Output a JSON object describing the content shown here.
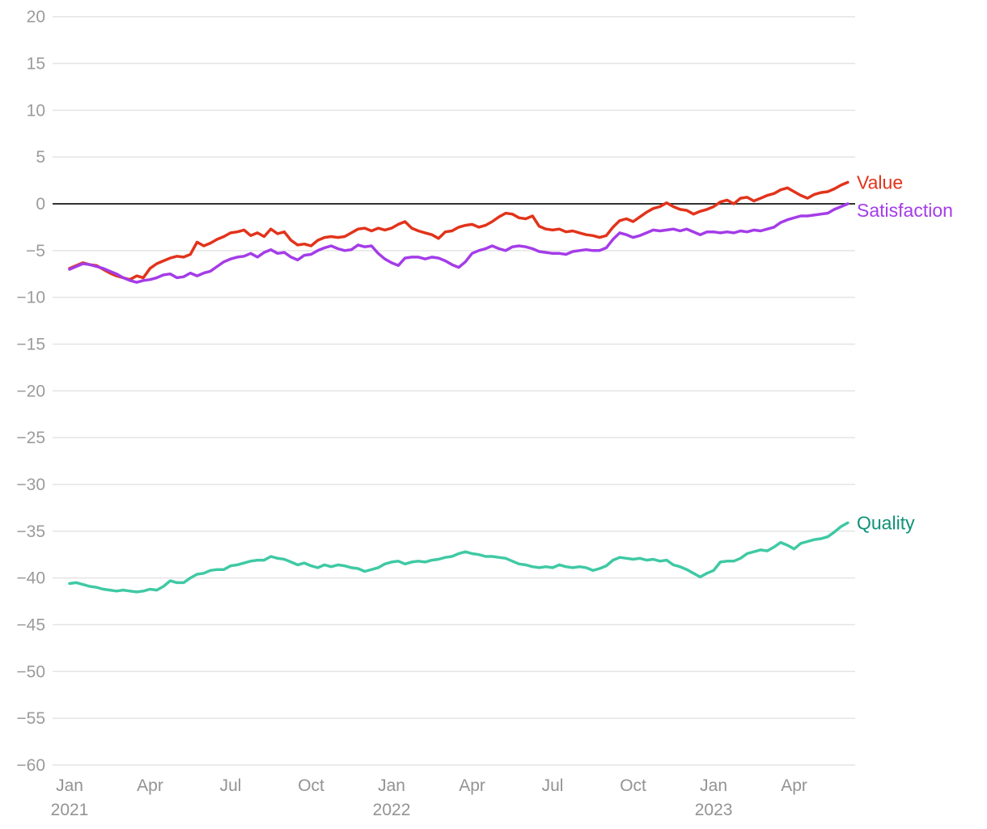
{
  "chart_data": {
    "type": "line",
    "title": "",
    "x_axis": {
      "unit": "months since Jan 2021",
      "t_start": 0,
      "t_step": 0.25,
      "ticks": [
        {
          "t": 0,
          "month": "Jan",
          "year": "2021"
        },
        {
          "t": 3,
          "month": "Apr",
          "year": ""
        },
        {
          "t": 6,
          "month": "Jul",
          "year": ""
        },
        {
          "t": 9,
          "month": "Oct",
          "year": ""
        },
        {
          "t": 12,
          "month": "Jan",
          "year": "2022"
        },
        {
          "t": 15,
          "month": "Apr",
          "year": ""
        },
        {
          "t": 18,
          "month": "Jul",
          "year": ""
        },
        {
          "t": 21,
          "month": "Oct",
          "year": ""
        },
        {
          "t": 24,
          "month": "Jan",
          "year": "2023"
        },
        {
          "t": 27,
          "month": "Apr",
          "year": ""
        }
      ]
    },
    "y_axis": {
      "ylim": [
        -60,
        20
      ],
      "zero_line": 0,
      "grid": true,
      "ticks": [
        {
          "v": 20,
          "label": "20"
        },
        {
          "v": 15,
          "label": "15"
        },
        {
          "v": 10,
          "label": "10"
        },
        {
          "v": 5,
          "label": "5"
        },
        {
          "v": 0,
          "label": "0"
        },
        {
          "v": -5,
          "label": "−5"
        },
        {
          "v": -10,
          "label": "−10"
        },
        {
          "v": -15,
          "label": "−15"
        },
        {
          "v": -20,
          "label": "−20"
        },
        {
          "v": -25,
          "label": "−25"
        },
        {
          "v": -30,
          "label": "−30"
        },
        {
          "v": -35,
          "label": "−35"
        },
        {
          "v": -40,
          "label": "−40"
        },
        {
          "v": -45,
          "label": "−45"
        },
        {
          "v": -50,
          "label": "−50"
        },
        {
          "v": -55,
          "label": "−55"
        },
        {
          "v": -60,
          "label": "−60"
        }
      ]
    },
    "legend_position": "right-of-line-end",
    "series": [
      {
        "name": "Value",
        "color": "#e2331b",
        "label_color": "#e2331b",
        "values": [
          -6.9,
          -6.6,
          -6.3,
          -6.5,
          -6.6,
          -7.0,
          -7.4,
          -7.7,
          -7.9,
          -8.1,
          -7.7,
          -7.9,
          -6.9,
          -6.4,
          -6.1,
          -5.8,
          -5.6,
          -5.7,
          -5.4,
          -4.1,
          -4.5,
          -4.2,
          -3.8,
          -3.5,
          -3.1,
          -3.0,
          -2.8,
          -3.4,
          -3.1,
          -3.5,
          -2.7,
          -3.2,
          -3.0,
          -3.9,
          -4.4,
          -4.3,
          -4.5,
          -3.9,
          -3.6,
          -3.5,
          -3.6,
          -3.5,
          -3.1,
          -2.7,
          -2.6,
          -2.9,
          -2.6,
          -2.8,
          -2.6,
          -2.2,
          -1.9,
          -2.6,
          -2.9,
          -3.1,
          -3.3,
          -3.7,
          -3.0,
          -2.9,
          -2.5,
          -2.3,
          -2.2,
          -2.5,
          -2.3,
          -1.9,
          -1.4,
          -1.0,
          -1.1,
          -1.5,
          -1.6,
          -1.3,
          -2.4,
          -2.7,
          -2.8,
          -2.7,
          -3.0,
          -2.9,
          -3.1,
          -3.3,
          -3.4,
          -3.6,
          -3.4,
          -2.5,
          -1.8,
          -1.6,
          -1.9,
          -1.4,
          -0.9,
          -0.5,
          -0.3,
          0.1,
          -0.3,
          -0.6,
          -0.7,
          -1.1,
          -0.8,
          -0.6,
          -0.3,
          0.2,
          0.4,
          0.0,
          0.6,
          0.7,
          0.3,
          0.6,
          0.9,
          1.1,
          1.5,
          1.7,
          1.3,
          0.9,
          0.6,
          1.0,
          1.2,
          1.3,
          1.6,
          2.0,
          2.3
        ]
      },
      {
        "name": "Satisfaction",
        "color": "#a43ce8",
        "label_color": "#a43ce8",
        "values": [
          -7.0,
          -6.7,
          -6.4,
          -6.5,
          -6.7,
          -6.9,
          -7.2,
          -7.5,
          -7.9,
          -8.2,
          -8.4,
          -8.2,
          -8.1,
          -7.9,
          -7.6,
          -7.5,
          -7.9,
          -7.8,
          -7.4,
          -7.7,
          -7.4,
          -7.2,
          -6.7,
          -6.2,
          -5.9,
          -5.7,
          -5.6,
          -5.3,
          -5.7,
          -5.2,
          -4.9,
          -5.3,
          -5.2,
          -5.7,
          -6.0,
          -5.5,
          -5.4,
          -5.0,
          -4.7,
          -4.5,
          -4.8,
          -5.0,
          -4.9,
          -4.4,
          -4.6,
          -4.5,
          -5.3,
          -5.9,
          -6.3,
          -6.6,
          -5.8,
          -5.7,
          -5.7,
          -5.9,
          -5.7,
          -5.8,
          -6.1,
          -6.5,
          -6.8,
          -6.2,
          -5.3,
          -5.0,
          -4.8,
          -4.5,
          -4.8,
          -5.0,
          -4.6,
          -4.5,
          -4.6,
          -4.8,
          -5.1,
          -5.2,
          -5.3,
          -5.3,
          -5.4,
          -5.1,
          -5.0,
          -4.9,
          -5.0,
          -5.0,
          -4.7,
          -3.8,
          -3.1,
          -3.3,
          -3.6,
          -3.4,
          -3.1,
          -2.8,
          -2.9,
          -2.8,
          -2.7,
          -2.9,
          -2.7,
          -3.0,
          -3.3,
          -3.0,
          -3.0,
          -3.1,
          -3.0,
          -3.1,
          -2.9,
          -3.0,
          -2.8,
          -2.9,
          -2.7,
          -2.5,
          -2.0,
          -1.7,
          -1.5,
          -1.3,
          -1.3,
          -1.2,
          -1.1,
          -1.0,
          -0.6,
          -0.3,
          0.0
        ]
      },
      {
        "name": "Quality",
        "color": "#3fc9a4",
        "label_color": "#0f9276",
        "values": [
          -40.6,
          -40.5,
          -40.7,
          -40.9,
          -41.0,
          -41.2,
          -41.3,
          -41.4,
          -41.3,
          -41.4,
          -41.5,
          -41.4,
          -41.2,
          -41.3,
          -40.9,
          -40.3,
          -40.5,
          -40.5,
          -40.0,
          -39.6,
          -39.5,
          -39.2,
          -39.1,
          -39.1,
          -38.7,
          -38.6,
          -38.4,
          -38.2,
          -38.1,
          -38.1,
          -37.7,
          -37.9,
          -38.0,
          -38.3,
          -38.6,
          -38.4,
          -38.7,
          -38.9,
          -38.6,
          -38.8,
          -38.6,
          -38.7,
          -38.9,
          -39.0,
          -39.3,
          -39.1,
          -38.9,
          -38.5,
          -38.3,
          -38.2,
          -38.5,
          -38.3,
          -38.2,
          -38.3,
          -38.1,
          -38.0,
          -37.8,
          -37.7,
          -37.4,
          -37.2,
          -37.4,
          -37.5,
          -37.7,
          -37.7,
          -37.8,
          -37.9,
          -38.2,
          -38.5,
          -38.6,
          -38.8,
          -38.9,
          -38.8,
          -38.9,
          -38.6,
          -38.8,
          -38.9,
          -38.8,
          -38.9,
          -39.2,
          -39.0,
          -38.7,
          -38.1,
          -37.8,
          -37.9,
          -38.0,
          -37.9,
          -38.1,
          -38.0,
          -38.2,
          -38.1,
          -38.6,
          -38.8,
          -39.1,
          -39.5,
          -39.9,
          -39.5,
          -39.2,
          -38.3,
          -38.2,
          -38.2,
          -37.9,
          -37.4,
          -37.2,
          -37.0,
          -37.1,
          -36.7,
          -36.2,
          -36.5,
          -36.9,
          -36.3,
          -36.1,
          -35.9,
          -35.8,
          -35.6,
          -35.1,
          -34.5,
          -34.1
        ]
      }
    ]
  },
  "colors": {
    "background": "#ffffff",
    "axis_label": "#9b9b9b",
    "gridline": "#e4e4e4",
    "zero_line": "#333333"
  }
}
